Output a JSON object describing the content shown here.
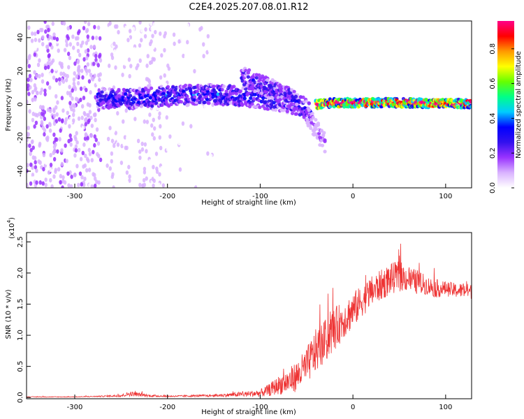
{
  "title": "C2E4.2025.207.08.01.R12",
  "chart_data": [
    {
      "type": "heatmap",
      "xlabel": "Height of straight line (km)",
      "ylabel": "Frequency (Hz)",
      "xlim": [
        -352,
        128
      ],
      "ylim": [
        -50,
        50
      ],
      "x_ticks": [
        -300,
        -200,
        -100,
        0,
        100
      ],
      "x_tick_labels": [
        "-300",
        "-200",
        "-100",
        "0",
        "100"
      ],
      "y_ticks": [
        -40,
        -20,
        0,
        20,
        40
      ],
      "y_tick_labels": [
        "-40",
        "-20",
        "0",
        "20",
        "40"
      ],
      "grid": false,
      "colorbar": {
        "label": "Normalized spectral amplitude",
        "range": [
          0,
          0.96
        ],
        "ticks": [
          0.0,
          0.2,
          0.4,
          0.6,
          0.8
        ],
        "tick_labels": [
          "0.0",
          "0.2",
          "0.4",
          "0.6",
          "0.8"
        ],
        "colors": [
          "#ffffff",
          "#d9b3ff",
          "#9933ff",
          "#3311ee",
          "#0000ff",
          "#00ccff",
          "#00ff88",
          "#66ff00",
          "#ffff00",
          "#ff9900",
          "#ff0000",
          "#ff0088"
        ]
      },
      "features": [
        {
          "name": "broadband noise",
          "x_range": [
            -352,
            -272
          ],
          "y_range": [
            -50,
            50
          ],
          "amplitude": 0.1
        },
        {
          "name": "noise band",
          "x_range": [
            -265,
            -200
          ],
          "y_range": [
            -50,
            50
          ],
          "amplitude": 0.05
        },
        {
          "name": "noise band",
          "x_range": [
            -200,
            -150
          ],
          "y_range": [
            -50,
            50
          ],
          "amplitude": 0.03
        },
        {
          "name": "main echo",
          "x": [
            -275,
            -250,
            -200,
            -150,
            -120,
            -100,
            -80,
            -60,
            -45
          ],
          "y": [
            4,
            3,
            5,
            6,
            5,
            4,
            2,
            0,
            -4
          ],
          "amplitude": 0.3
        },
        {
          "name": "upper branch",
          "x": [
            -120,
            -100,
            -80,
            -60
          ],
          "y": [
            17,
            12,
            7,
            2
          ],
          "amplitude": 0.25
        },
        {
          "name": "lower tail",
          "x": [
            -50,
            -40,
            -30
          ],
          "y": [
            -5,
            -15,
            -23
          ],
          "amplitude": 0.15
        },
        {
          "name": "strong echo",
          "x": [
            -40,
            -20,
            0,
            50,
            100,
            128
          ],
          "y": [
            0,
            1,
            1,
            1,
            0.5,
            0.5
          ],
          "amplitude": 0.9
        }
      ]
    },
    {
      "type": "line",
      "xlabel": "Height of straight line (km)",
      "ylabel": "SNR (10 * v/v)",
      "y_scale_label": "(x10",
      "y_scale_exponent": "4",
      "y_scale_suffix": ")",
      "xlim": [
        -352,
        128
      ],
      "ylim": [
        -0.02,
        2.65
      ],
      "x_ticks": [
        -300,
        -200,
        -100,
        0,
        100
      ],
      "x_tick_labels": [
        "-300",
        "-200",
        "-100",
        "0",
        "100"
      ],
      "y_ticks": [
        0.0,
        0.5,
        1.0,
        1.5,
        2.0,
        2.5
      ],
      "y_tick_labels": [
        "0.0",
        "0.5",
        "1.0",
        "1.5",
        "2.0",
        "2.5"
      ],
      "grid": false,
      "series": [
        {
          "color": "#ee3333",
          "x": [
            -352,
            -300,
            -270,
            -250,
            -240,
            -220,
            -200,
            -150,
            -120,
            -100,
            -90,
            -80,
            -70,
            -60,
            -50,
            -40,
            -30,
            -20,
            -10,
            0,
            10,
            20,
            30,
            40,
            50,
            60,
            70,
            80,
            90,
            100,
            110,
            120,
            128
          ],
          "y": [
            0.01,
            0.01,
            0.02,
            0.03,
            0.06,
            0.03,
            0.02,
            0.03,
            0.05,
            0.07,
            0.12,
            0.2,
            0.25,
            0.35,
            0.5,
            0.75,
            0.9,
            1.1,
            1.25,
            1.4,
            1.55,
            1.7,
            1.8,
            1.9,
            1.95,
            1.9,
            1.85,
            1.8,
            1.75,
            1.75,
            1.72,
            1.72,
            1.7
          ],
          "noise": [
            0.005,
            0.005,
            0.01,
            0.02,
            0.04,
            0.02,
            0.01,
            0.02,
            0.04,
            0.06,
            0.1,
            0.15,
            0.2,
            0.25,
            0.3,
            0.35,
            0.35,
            0.35,
            0.3,
            0.3,
            0.25,
            0.25,
            0.25,
            0.25,
            0.25,
            0.2,
            0.2,
            0.15,
            0.15,
            0.12,
            0.12,
            0.12,
            0.12
          ]
        }
      ]
    }
  ]
}
